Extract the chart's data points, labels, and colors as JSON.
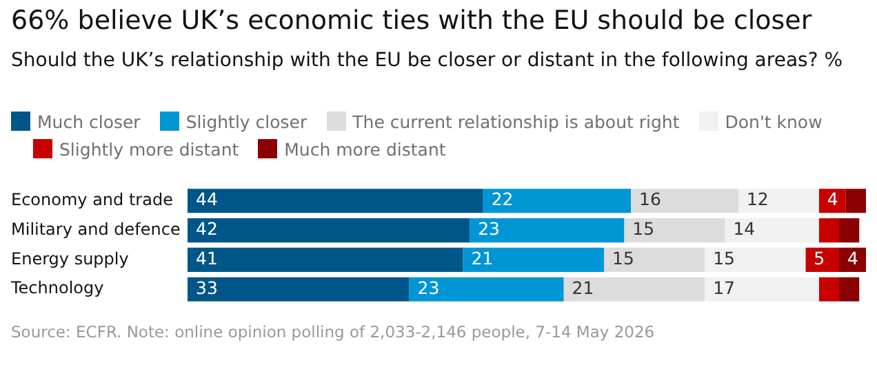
{
  "chart_data": {
    "type": "bar",
    "orientation": "horizontal",
    "stacked": true,
    "title": "66% believe UK’s economic ties with the EU should be closer",
    "subtitle": "Should the UK’s relationship with the EU be closer or distant in the following areas? %",
    "categories": [
      "Economy and trade",
      "Military and defence",
      "Energy supply",
      "Technology"
    ],
    "series": [
      {
        "name": "Much closer",
        "color": "#005689",
        "values": [
          44,
          42,
          41,
          33
        ],
        "value_labels": [
          "44",
          "42",
          "41",
          "33"
        ]
      },
      {
        "name": "Slightly closer",
        "color": "#0096d6",
        "values": [
          22,
          23,
          21,
          23
        ],
        "value_labels": [
          "22",
          "23",
          "21",
          "23"
        ]
      },
      {
        "name": "The current relationship is about right",
        "color": "#dcdcdc",
        "values": [
          16,
          15,
          15,
          21
        ],
        "value_labels": [
          "16",
          "15",
          "15",
          "21"
        ]
      },
      {
        "name": "Don't know",
        "color": "#f1f1f1",
        "values": [
          12,
          14,
          15,
          17
        ],
        "value_labels": [
          "12",
          "14",
          "15",
          "17"
        ]
      },
      {
        "name": "Slightly more distant",
        "color": "#c70000",
        "values": [
          4,
          3,
          5,
          3
        ],
        "value_labels": [
          "4",
          null,
          "5",
          null
        ]
      },
      {
        "name": "Much more distant",
        "color": "#8b0000",
        "values": [
          3,
          3,
          4,
          3
        ],
        "value_labels": [
          null,
          null,
          "4",
          null
        ]
      }
    ],
    "xlim": [
      0,
      101
    ],
    "tick_labels": "y",
    "legend": "top left",
    "annotations": [
      "Source: ECFR. Note: online opinion polling of 2,033-2,146 people, 7-14 May 2026"
    ]
  }
}
